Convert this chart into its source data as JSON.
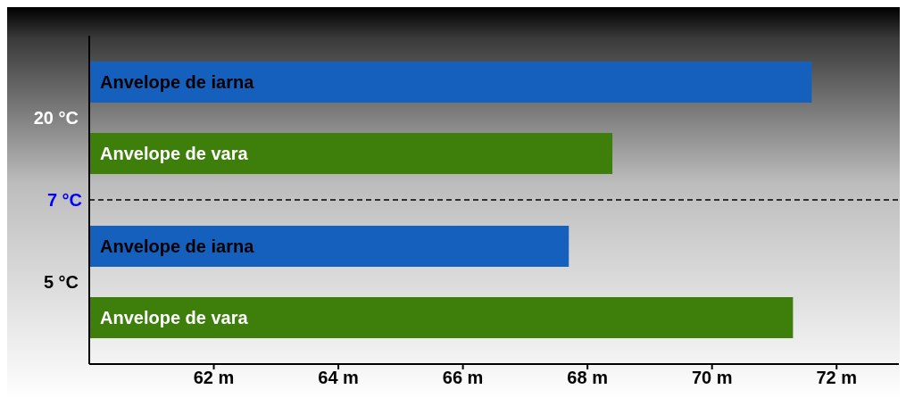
{
  "chart_data": {
    "type": "bar",
    "orientation": "horizontal",
    "categories": [
      "20 °C",
      "5 °C"
    ],
    "series": [
      {
        "name": "Anvelope de iarna",
        "color": "#1560bd",
        "values": [
          71.6,
          67.7
        ]
      },
      {
        "name": "Anvelope de vara",
        "color": "#3d7f0a",
        "values": [
          68.4,
          71.3
        ]
      }
    ],
    "xlim": [
      60,
      73
    ],
    "xticks": [
      {
        "value": 62,
        "label": "62 m"
      },
      {
        "value": 64,
        "label": "64 m"
      },
      {
        "value": 66,
        "label": "66 m"
      },
      {
        "value": 68,
        "label": "68 m"
      },
      {
        "value": 70,
        "label": "70 m"
      },
      {
        "value": 72,
        "label": "72 m"
      }
    ],
    "annotations": [
      "7 °C"
    ],
    "grid": false,
    "legend": false
  }
}
